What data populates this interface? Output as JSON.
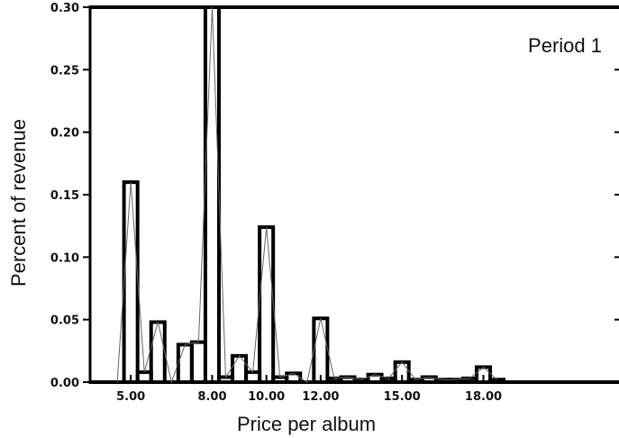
{
  "chart_data": {
    "type": "bar",
    "title": "",
    "annotation": "Period 1",
    "xlabel": "Price per album",
    "ylabel": "Percent of revenue",
    "ylim": [
      0,
      0.3
    ],
    "xlim": [
      3.5,
      23.0
    ],
    "grid": false,
    "y_ticks": [
      {
        "value": 0.0,
        "label": "0.00"
      },
      {
        "value": 0.05,
        "label": "0.05"
      },
      {
        "value": 0.1,
        "label": "0.10"
      },
      {
        "value": 0.15,
        "label": "0.15"
      },
      {
        "value": 0.2,
        "label": "0.20"
      },
      {
        "value": 0.25,
        "label": "0.25"
      },
      {
        "value": 0.3,
        "label": "0.30"
      }
    ],
    "x_ticks": [
      {
        "value": 5.0,
        "label": "5.00"
      },
      {
        "value": 8.0,
        "label": "8.00"
      },
      {
        "value": 10.0,
        "label": "10.00"
      },
      {
        "value": 12.0,
        "label": "12.00"
      },
      {
        "value": 15.0,
        "label": "15.00"
      },
      {
        "value": 18.0,
        "label": "18.00"
      }
    ],
    "bin_width": 0.5,
    "series": [
      {
        "x": [
          4.5,
          5.0,
          5.5,
          6.0,
          6.5,
          7.0,
          7.5,
          8.0,
          8.5,
          9.0,
          9.5,
          10.0,
          10.5,
          11.0,
          11.5,
          12.0,
          12.5,
          13.0,
          13.5,
          14.0,
          14.5,
          15.0,
          15.5,
          16.0,
          16.5,
          17.0,
          17.5,
          18.0,
          18.5
        ],
        "values": [
          0.0,
          0.16,
          0.008,
          0.048,
          0.0,
          0.03,
          0.032,
          0.3,
          0.004,
          0.021,
          0.008,
          0.124,
          0.004,
          0.007,
          0.0,
          0.051,
          0.003,
          0.004,
          0.002,
          0.006,
          0.003,
          0.016,
          0.002,
          0.004,
          0.002,
          0.002,
          0.003,
          0.012,
          0.002
        ]
      }
    ]
  }
}
